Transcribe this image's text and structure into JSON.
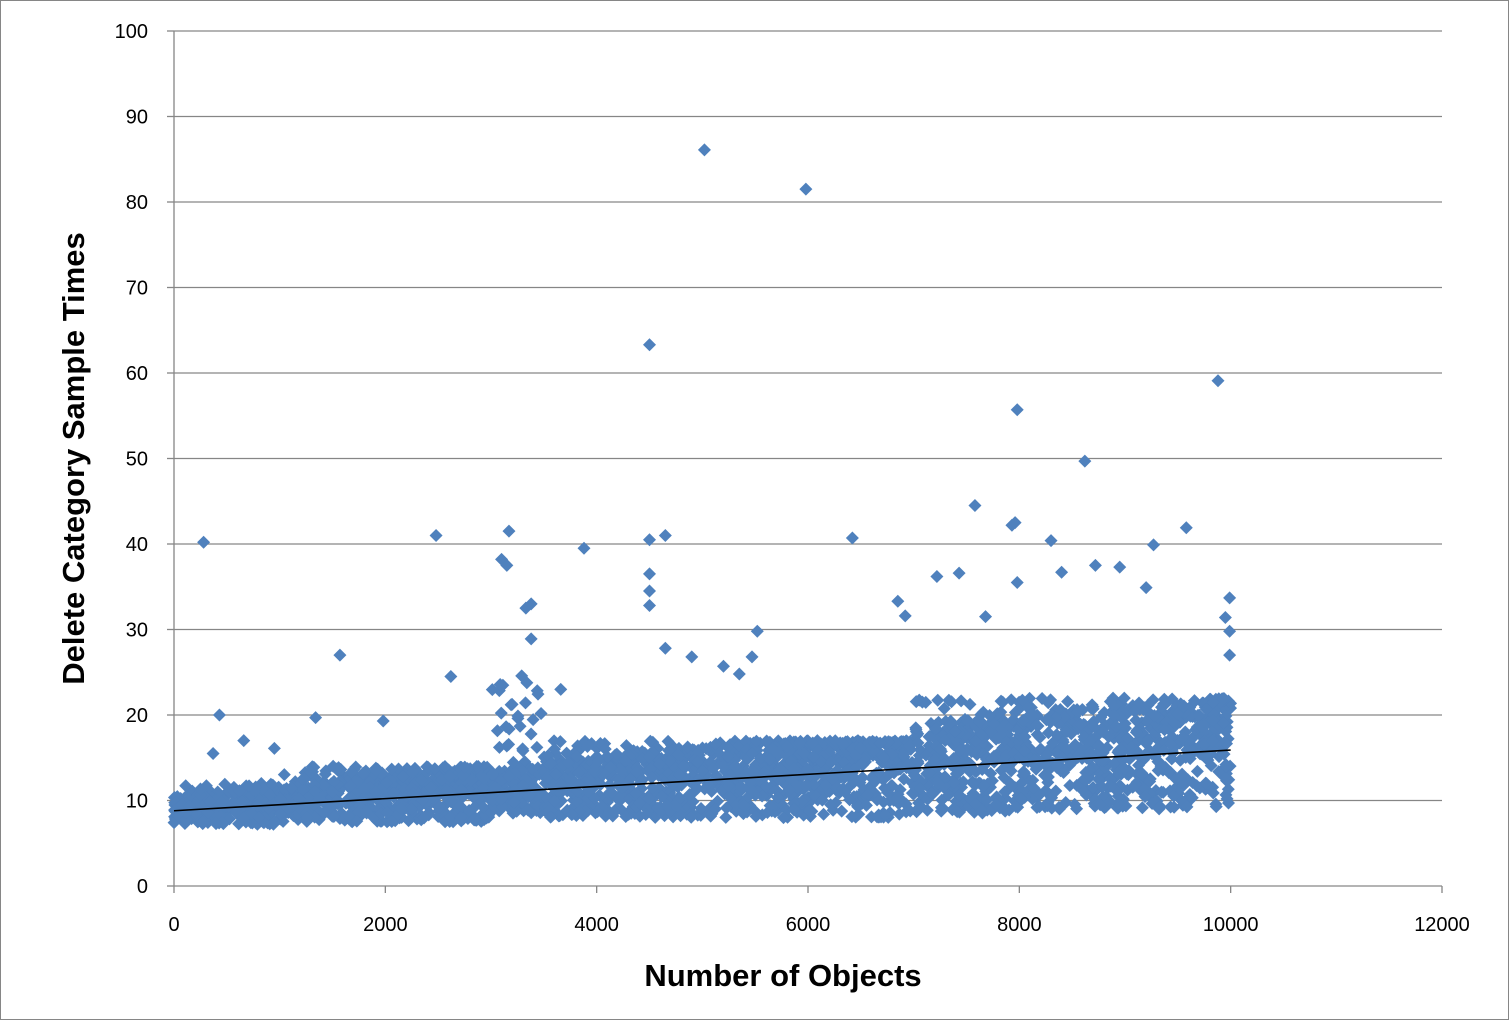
{
  "chart_data": {
    "type": "scatter",
    "title": "",
    "xlabel": "Number of Objects",
    "ylabel": "Delete Category Sample Times",
    "xlim": [
      0,
      12000
    ],
    "ylim": [
      0,
      100
    ],
    "x_ticks": [
      "0",
      "2000",
      "4000",
      "6000",
      "8000",
      "10000",
      "12000"
    ],
    "y_ticks": [
      "0",
      "10",
      "20",
      "30",
      "40",
      "50",
      "60",
      "70",
      "80",
      "90",
      "100"
    ],
    "grid": "horizontal",
    "legend": "none",
    "marker": "diamond",
    "marker_color": "#4F81BD",
    "trendline_color": "#000000",
    "trendline": {
      "x": [
        0,
        10000
      ],
      "y": [
        8.8,
        15.9
      ]
    },
    "bulk_density_bands": [
      {
        "x": [
          0,
          1000
        ],
        "y": [
          7.2,
          12
        ]
      },
      {
        "x": [
          1000,
          3000
        ],
        "y": [
          7.5,
          14
        ]
      },
      {
        "x": [
          3000,
          3500
        ],
        "y": [
          8.5,
          25
        ]
      },
      {
        "x": [
          3500,
          7000
        ],
        "y": [
          8,
          17
        ]
      },
      {
        "x": [
          7000,
          8000
        ],
        "y": [
          8.5,
          22
        ]
      },
      {
        "x": [
          8000,
          10000
        ],
        "y": [
          9,
          22
        ]
      }
    ],
    "outliers": [
      {
        "x": 280,
        "y": 40.2
      },
      {
        "x": 430,
        "y": 20
      },
      {
        "x": 370,
        "y": 15.5
      },
      {
        "x": 660,
        "y": 17
      },
      {
        "x": 950,
        "y": 16.1
      },
      {
        "x": 1340,
        "y": 19.7
      },
      {
        "x": 1570,
        "y": 27
      },
      {
        "x": 1980,
        "y": 19.3
      },
      {
        "x": 2480,
        "y": 41
      },
      {
        "x": 2620,
        "y": 24.5
      },
      {
        "x": 3100,
        "y": 38.2
      },
      {
        "x": 3170,
        "y": 41.5
      },
      {
        "x": 3150,
        "y": 37.5
      },
      {
        "x": 3330,
        "y": 32.5
      },
      {
        "x": 3380,
        "y": 33
      },
      {
        "x": 3380,
        "y": 28.9
      },
      {
        "x": 3660,
        "y": 23
      },
      {
        "x": 3880,
        "y": 39.5
      },
      {
        "x": 4500,
        "y": 63.3
      },
      {
        "x": 4500,
        "y": 40.5
      },
      {
        "x": 4650,
        "y": 41
      },
      {
        "x": 4500,
        "y": 36.5
      },
      {
        "x": 4500,
        "y": 34.5
      },
      {
        "x": 4500,
        "y": 32.8
      },
      {
        "x": 4650,
        "y": 27.8
      },
      {
        "x": 4900,
        "y": 26.8
      },
      {
        "x": 5020,
        "y": 86.1
      },
      {
        "x": 5200,
        "y": 25.7
      },
      {
        "x": 5350,
        "y": 24.8
      },
      {
        "x": 5470,
        "y": 26.8
      },
      {
        "x": 5520,
        "y": 29.8
      },
      {
        "x": 5980,
        "y": 81.5
      },
      {
        "x": 6420,
        "y": 40.7
      },
      {
        "x": 6850,
        "y": 33.3
      },
      {
        "x": 6920,
        "y": 31.6
      },
      {
        "x": 7220,
        "y": 36.2
      },
      {
        "x": 7430,
        "y": 36.6
      },
      {
        "x": 7580,
        "y": 44.5
      },
      {
        "x": 7680,
        "y": 31.5
      },
      {
        "x": 7930,
        "y": 42.2
      },
      {
        "x": 7960,
        "y": 42.5
      },
      {
        "x": 7980,
        "y": 55.7
      },
      {
        "x": 7980,
        "y": 35.5
      },
      {
        "x": 8300,
        "y": 40.4
      },
      {
        "x": 8400,
        "y": 36.7
      },
      {
        "x": 8620,
        "y": 49.7
      },
      {
        "x": 8720,
        "y": 37.5
      },
      {
        "x": 8950,
        "y": 37.3
      },
      {
        "x": 9200,
        "y": 34.9
      },
      {
        "x": 9270,
        "y": 39.9
      },
      {
        "x": 9580,
        "y": 41.9
      },
      {
        "x": 9880,
        "y": 59.1
      },
      {
        "x": 9990,
        "y": 33.7
      },
      {
        "x": 9950,
        "y": 31.4
      },
      {
        "x": 9990,
        "y": 29.8
      },
      {
        "x": 9990,
        "y": 27
      }
    ]
  }
}
